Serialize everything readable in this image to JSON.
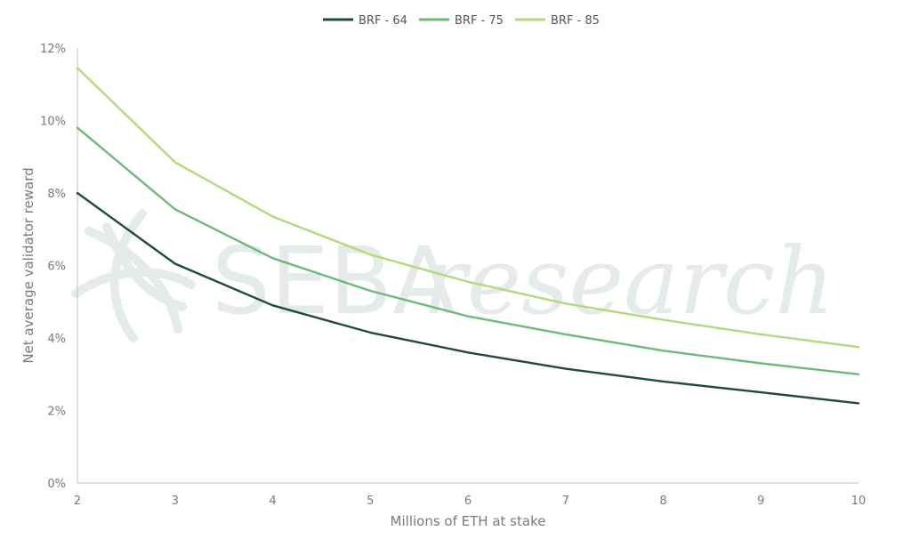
{
  "chart_data": {
    "type": "line",
    "title": "",
    "xlabel": "Millions of ETH at stake",
    "ylabel": "Net average validator reward",
    "x": [
      2,
      3,
      4,
      5,
      6,
      7,
      8,
      9,
      10
    ],
    "xlim": [
      2,
      10
    ],
    "ylim": [
      0,
      12
    ],
    "y_ticks": [
      "0%",
      "2%",
      "4%",
      "6%",
      "8%",
      "10%",
      "12%"
    ],
    "x_ticks": [
      "2",
      "3",
      "4",
      "5",
      "6",
      "7",
      "8",
      "9",
      "10"
    ],
    "grid": false,
    "legend_position": "top-center",
    "series": [
      {
        "name": "BRF - 64",
        "color": "#1f4a3c",
        "values": [
          8.0,
          6.05,
          4.9,
          4.15,
          3.6,
          3.15,
          2.8,
          2.5,
          2.2
        ]
      },
      {
        "name": "BRF - 75",
        "color": "#6db97a",
        "values": [
          9.8,
          7.55,
          6.2,
          5.3,
          4.6,
          4.1,
          3.65,
          3.3,
          3.0
        ]
      },
      {
        "name": "BRF - 85",
        "color": "#b4d97a",
        "values": [
          11.45,
          8.85,
          7.35,
          6.3,
          5.55,
          4.95,
          4.5,
          4.1,
          3.75
        ]
      }
    ]
  },
  "watermark": {
    "part1": "SEBA",
    "part2": "research"
  }
}
